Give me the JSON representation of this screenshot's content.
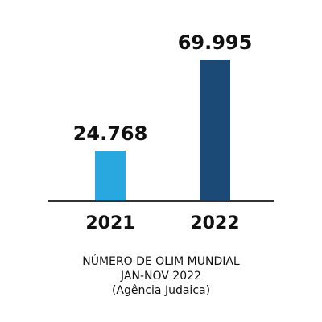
{
  "chart_data": {
    "type": "bar",
    "categories": [
      "2021",
      "2022"
    ],
    "values": [
      24768,
      69995
    ],
    "value_labels": [
      "24.768",
      "69.995"
    ],
    "colors": [
      "#29a8e0",
      "#1b4a76"
    ],
    "title": "NÚMERO DE OLIM MUNDIAL",
    "subtitle": "JAN-NOV 2022",
    "source": "(Agência Judaica)"
  }
}
